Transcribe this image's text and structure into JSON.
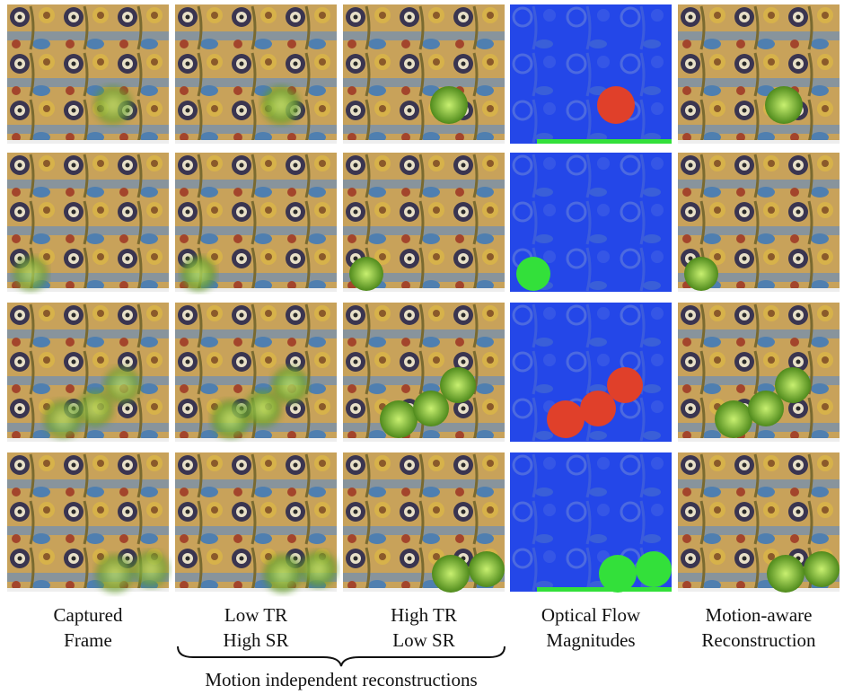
{
  "columns": [
    {
      "caption": [
        "Captured",
        "Frame"
      ]
    },
    {
      "caption": [
        "Low TR",
        "High SR"
      ]
    },
    {
      "caption": [
        "High TR",
        "Low SR"
      ]
    },
    {
      "caption": [
        "Optical Flow",
        "Magnitudes"
      ]
    },
    {
      "caption": [
        "Motion-aware",
        "Reconstruction"
      ]
    }
  ],
  "group_label": "Motion independent reconstructions"
}
